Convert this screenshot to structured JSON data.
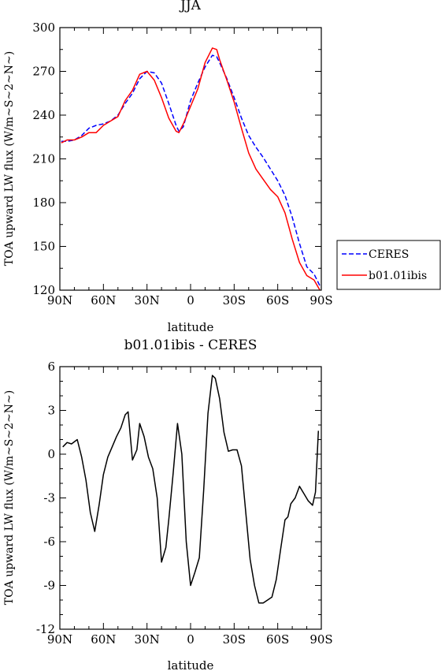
{
  "chart_data": [
    {
      "type": "line",
      "title": "JJA",
      "xlabel": "latitude",
      "ylabel": "TOA upward LW flux (W/m~S~2~N~)",
      "xlim": [
        -90,
        90
      ],
      "ylim": [
        120,
        300
      ],
      "x_ticks": [
        "90N",
        "60N",
        "30N",
        "0",
        "30S",
        "60S",
        "90S"
      ],
      "y_ticks": [
        "120",
        "150",
        "180",
        "210",
        "240",
        "270",
        "300"
      ],
      "legend_position": "right",
      "series": [
        {
          "name": "CERES",
          "color": "#0000ff",
          "dash": "dashed",
          "x": [
            -89,
            -85,
            -80,
            -75,
            -70,
            -65,
            -60,
            -55,
            -50,
            -45,
            -40,
            -35,
            -30,
            -25,
            -20,
            -15,
            -10,
            -8,
            -5,
            0,
            5,
            10,
            15,
            18,
            20,
            25,
            30,
            35,
            40,
            45,
            50,
            55,
            60,
            65,
            70,
            75,
            80,
            85,
            89
          ],
          "y": [
            222,
            222,
            223,
            226,
            231,
            233,
            234,
            236,
            240,
            248,
            255,
            265,
            270,
            269,
            262,
            248,
            233,
            229,
            232,
            250,
            262,
            273,
            281,
            280,
            276,
            265,
            252,
            238,
            226,
            218,
            211,
            203,
            195,
            185,
            170,
            152,
            136,
            131,
            123
          ]
        },
        {
          "name": "b01.01ibis",
          "color": "#ff0000",
          "dash": "solid",
          "x": [
            -89,
            -85,
            -80,
            -75,
            -70,
            -65,
            -60,
            -55,
            -50,
            -45,
            -40,
            -35,
            -30,
            -25,
            -20,
            -15,
            -10,
            -8,
            -5,
            0,
            5,
            10,
            15,
            18,
            20,
            25,
            30,
            35,
            40,
            45,
            50,
            55,
            60,
            65,
            70,
            75,
            80,
            85,
            89
          ],
          "y": [
            221,
            223,
            223,
            225,
            228,
            228,
            233,
            236,
            239,
            250,
            257,
            268,
            270,
            264,
            252,
            238,
            229,
            228,
            234,
            246,
            258,
            276,
            286,
            285,
            278,
            264,
            249,
            231,
            214,
            203,
            196,
            189,
            184,
            173,
            155,
            139,
            130,
            127,
            120
          ]
        }
      ]
    },
    {
      "type": "line",
      "title": "b01.01ibis - CERES",
      "xlabel": "latitude",
      "ylabel": "TOA upward LW flux (W/m~S~2~N~)",
      "xlim": [
        -90,
        90
      ],
      "ylim": [
        -12,
        6
      ],
      "x_ticks": [
        "90N",
        "60N",
        "30N",
        "0",
        "30S",
        "60S",
        "90S"
      ],
      "y_ticks": [
        "-12",
        "-9",
        "-6",
        "-3",
        "0",
        "3",
        "6"
      ],
      "series": [
        {
          "color": "#000000",
          "dash": "solid",
          "x": [
            -88,
            -85,
            -82,
            -78,
            -75,
            -72,
            -69,
            -66,
            -63,
            -60,
            -57,
            -54,
            -51,
            -48,
            -45,
            -43,
            -40,
            -37,
            -35,
            -32,
            -29,
            -26,
            -23,
            -20,
            -17,
            -15,
            -12,
            -9,
            -6,
            -3,
            0,
            3,
            6,
            9,
            12,
            15,
            17,
            20,
            23,
            26,
            29,
            32,
            35,
            38,
            41,
            44,
            47,
            50,
            53,
            56,
            59,
            62,
            65,
            67,
            69,
            72,
            75,
            78,
            81,
            84,
            86,
            88
          ],
          "y": [
            0.5,
            0.8,
            0.7,
            1.0,
            -0.2,
            -1.8,
            -4.0,
            -5.3,
            -3.5,
            -1.4,
            -0.2,
            0.5,
            1.2,
            1.8,
            2.7,
            2.9,
            -0.4,
            0.3,
            2.1,
            1.2,
            -0.2,
            -1.0,
            -3.0,
            -7.4,
            -6.4,
            -4.5,
            -1.3,
            2.1,
            0.0,
            -6.0,
            -9.0,
            -8.1,
            -7.1,
            -2.5,
            2.8,
            5.4,
            5.2,
            3.8,
            1.5,
            0.2,
            0.3,
            0.3,
            -0.8,
            -4.0,
            -7.2,
            -9.0,
            -10.2,
            -10.2,
            -10.0,
            -9.8,
            -8.6,
            -6.5,
            -4.5,
            -4.3,
            -3.4,
            -3.0,
            -2.2,
            -2.7,
            -3.2,
            -3.5,
            -2.6,
            1.6
          ]
        }
      ]
    }
  ]
}
